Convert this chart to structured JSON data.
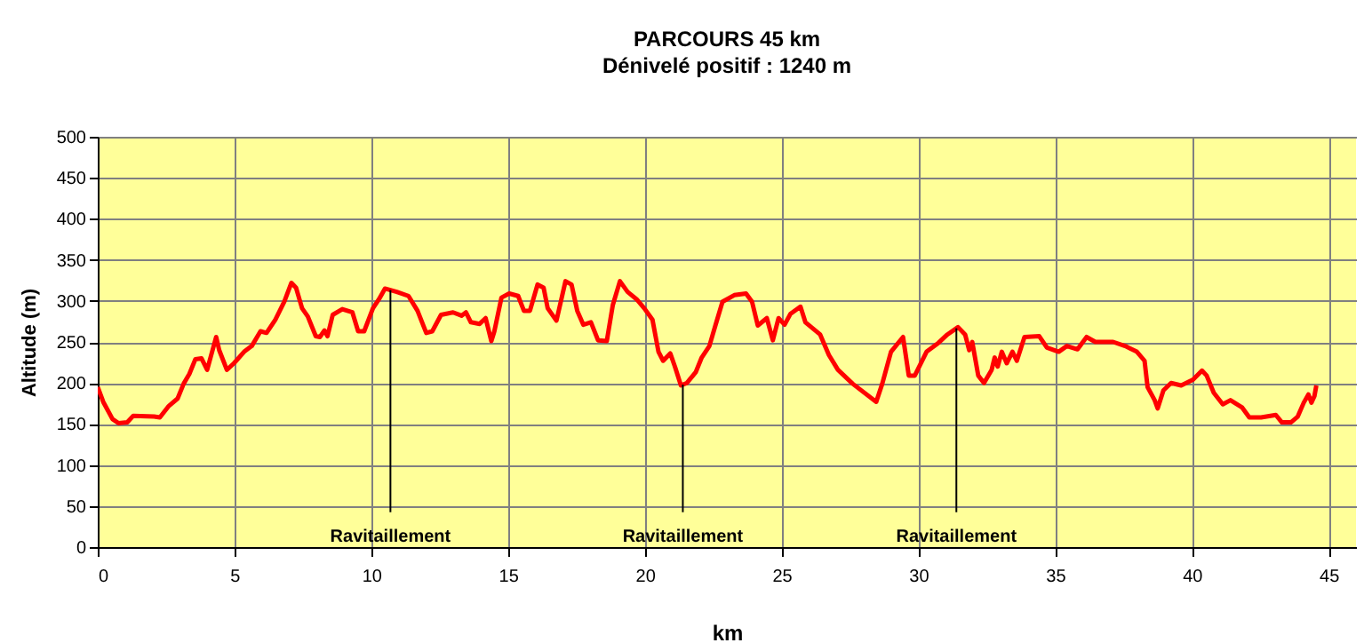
{
  "chart_data": {
    "type": "line",
    "title": "PARCOURS 45 km",
    "subtitle": "Dénivelé positif  : 1240 m",
    "xlabel": "km",
    "ylabel": "Altitude (m)",
    "xlim": [
      0,
      46
    ],
    "xticks": [
      0,
      5,
      10,
      15,
      20,
      25,
      30,
      35,
      40,
      45
    ],
    "ylim": [
      0,
      500
    ],
    "yticks": [
      0,
      50,
      100,
      150,
      200,
      250,
      300,
      350,
      400,
      450,
      500
    ],
    "grid": true,
    "legend": false,
    "marker": "none",
    "line_style": "solid",
    "x": [
      0,
      0.2,
      0.54,
      0.76,
      1.08,
      1.3,
      2.06,
      2.27,
      2.6,
      2.92,
      3.14,
      3.35,
      3.57,
      3.79,
      4.0,
      4.33,
      4.44,
      4.72,
      4.98,
      5.35,
      5.63,
      5.95,
      6.17,
      6.49,
      6.82,
      7.08,
      7.25,
      7.47,
      7.68,
      7.97,
      8.12,
      8.29,
      8.4,
      8.59,
      8.94,
      9.31,
      9.52,
      9.74,
      10.06,
      10.28,
      10.5,
      10.93,
      11.36,
      11.69,
      12.01,
      12.23,
      12.55,
      12.99,
      13.3,
      13.46,
      13.64,
      13.96,
      14.18,
      14.39,
      14.5,
      14.76,
      15.04,
      15.37,
      15.58,
      15.8,
      16.08,
      16.3,
      16.45,
      16.77,
      17.1,
      17.32,
      17.53,
      17.75,
      18.03,
      18.29,
      18.61,
      18.83,
      19.09,
      19.37,
      19.7,
      19.98,
      20.28,
      20.5,
      20.67,
      20.93,
      21.1,
      21.32,
      21.54,
      21.86,
      22.08,
      22.36,
      22.58,
      22.84,
      23.27,
      23.7,
      23.92,
      24.13,
      24.46,
      24.68,
      24.89,
      25.11,
      25.32,
      25.69,
      25.87,
      26.41,
      26.73,
      27.06,
      27.6,
      28.46,
      28.68,
      29.0,
      29.44,
      29.65,
      29.87,
      30.3,
      30.74,
      31.06,
      31.45,
      31.71,
      31.86,
      31.97,
      32.19,
      32.4,
      32.68,
      32.79,
      32.9,
      33.05,
      33.23,
      33.44,
      33.6,
      33.88,
      34.42,
      34.7,
      35.13,
      35.43,
      35.82,
      36.15,
      36.47,
      37.12,
      37.56,
      37.99,
      38.27,
      38.38,
      38.64,
      38.75,
      38.96,
      39.24,
      39.61,
      40.04,
      40.37,
      40.54,
      40.8,
      41.13,
      41.41,
      41.84,
      42.1,
      42.53,
      43.07,
      43.29,
      43.62,
      43.87,
      44.09,
      44.26,
      44.37,
      44.48,
      44.55
    ],
    "series": [
      {
        "color": "#ff0000",
        "values": [
          195,
          177,
          156,
          151,
          152,
          160,
          159,
          158,
          172,
          181,
          199,
          211,
          229,
          230,
          216,
          256,
          240,
          216,
          224,
          238,
          245,
          263,
          261,
          277,
          299,
          322,
          316,
          291,
          281,
          257,
          256,
          264,
          257,
          283,
          290,
          286,
          263,
          263,
          291,
          302,
          315,
          311,
          306,
          288,
          261,
          263,
          283,
          286,
          282,
          286,
          274,
          272,
          279,
          251,
          263,
          304,
          309,
          306,
          288,
          288,
          320,
          316,
          291,
          276,
          324,
          320,
          288,
          271,
          274,
          252,
          251,
          295,
          324,
          311,
          302,
          291,
          277,
          238,
          227,
          236,
          220,
          197,
          200,
          213,
          231,
          245,
          270,
          299,
          307,
          309,
          299,
          270,
          279,
          252,
          279,
          271,
          284,
          293,
          274,
          259,
          234,
          216,
          199,
          177,
          199,
          238,
          256,
          209,
          209,
          238,
          249,
          259,
          268,
          259,
          240,
          250,
          209,
          200,
          216,
          231,
          220,
          238,
          224,
          238,
          227,
          256,
          257,
          243,
          238,
          245,
          241,
          256,
          250,
          250,
          245,
          238,
          227,
          195,
          179,
          169,
          191,
          200,
          197,
          204,
          215,
          209,
          188,
          174,
          179,
          170,
          158,
          158,
          161,
          152,
          152,
          159,
          176,
          186,
          176,
          184,
          197
        ]
      }
    ],
    "ref_lines": [
      {
        "axis": "x",
        "value": 10.7,
        "label": "Ravitaillement",
        "color": "#000000"
      },
      {
        "axis": "x",
        "value": 21.39,
        "label": "Ravitaillement",
        "color": "#000000"
      },
      {
        "axis": "x",
        "value": 31.39,
        "label": "Ravitaillement",
        "color": "#000000"
      }
    ]
  }
}
